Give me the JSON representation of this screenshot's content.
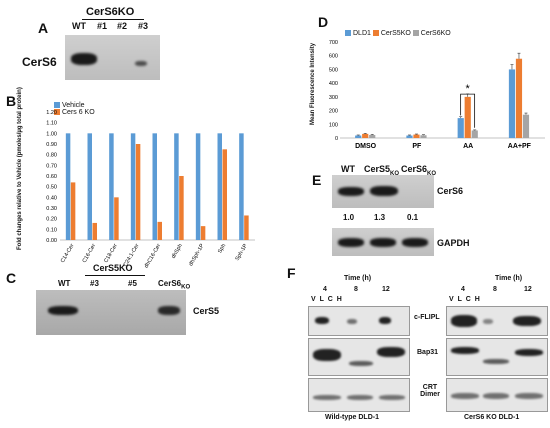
{
  "panelA": {
    "label": "A",
    "header": "CerS6KO",
    "lanes": [
      "WT",
      "#1",
      "#2",
      "#3"
    ],
    "rowLabel": "CerS6"
  },
  "panelB": {
    "label": "B",
    "legend": [
      "Vehicle",
      "Cers 6 KO"
    ],
    "ylabel": "Fold changes relative to Vehicle (pmoles/µg total protein)",
    "yticks": [
      "0.00",
      "0.10",
      "0.20",
      "0.30",
      "0.40",
      "0.50",
      "0.60",
      "0.70",
      "0.80",
      "0.90",
      "1.00",
      "1.10",
      "1.20"
    ]
  },
  "panelC": {
    "label": "C",
    "header": "CerS5KO",
    "lanes": [
      "WT",
      "#3",
      "#5",
      "CerS6"
    ],
    "subscript": "KO",
    "rowLabel": "CerS5"
  },
  "panelD": {
    "label": "D",
    "legend": [
      "DLD1",
      "CerS5KO",
      "CerS6KO"
    ],
    "ylabel": "Mean Fluorescence Intensity",
    "yticks": [
      "0",
      "100",
      "200",
      "300",
      "400",
      "500",
      "600",
      "700"
    ],
    "star": "*"
  },
  "panelE": {
    "label": "E",
    "lanes": [
      "WT",
      "CerS5",
      "CerS6"
    ],
    "subscript": "KO",
    "rows": [
      "CerS6",
      "GAPDH"
    ],
    "values": [
      "1.0",
      "1.3",
      "0.1"
    ]
  },
  "panelF": {
    "label": "F",
    "time": "Time (h)",
    "timepoints": [
      "4",
      "8",
      "12"
    ],
    "lanes": [
      "V",
      "L",
      "C",
      "H"
    ],
    "rows": [
      "c-FLIPL",
      "Bap31",
      "CRT Dimer"
    ],
    "captionLeft": "Wild-type DLD-1",
    "captionRight": "CerS6 KO DLD-1"
  },
  "chart_data": [
    {
      "type": "bar",
      "categories": [
        "C14-Cer",
        "C16-Cer",
        "C18-Cer",
        "C24:1-Cer",
        "dhC16-Cer",
        "dhSph",
        "dhSph-1P",
        "Sph",
        "Sph-1P"
      ],
      "series": [
        {
          "name": "Vehicle",
          "values": [
            1,
            1,
            1,
            1,
            1,
            1,
            1,
            1,
            1
          ]
        },
        {
          "name": "Cers 6 KO",
          "values": [
            0.54,
            0.16,
            0.4,
            0.9,
            0.17,
            0.6,
            0.13,
            0.85,
            0.23
          ]
        }
      ],
      "ylabel": "Fold changes relative to Vehicle (pmoles/µg total protein)",
      "ylim": [
        0,
        1.2
      ],
      "legend": "top-left",
      "colors": [
        "#5b9bd5",
        "#ed7d31"
      ]
    },
    {
      "type": "bar",
      "categories": [
        "DMSO",
        "PF",
        "AA",
        "AA+PF"
      ],
      "series": [
        {
          "name": "DLD1",
          "values": [
            18,
            18,
            145,
            500
          ]
        },
        {
          "name": "CerS5KO",
          "values": [
            30,
            25,
            300,
            578
          ]
        },
        {
          "name": "CerS6KO",
          "values": [
            22,
            20,
            55,
            170
          ]
        }
      ],
      "ylabel": "Mean Fluorescence Intensity",
      "ylim": [
        0,
        700
      ],
      "legend": "top-left",
      "colors": [
        "#5b9bd5",
        "#ed7d31",
        "#a5a5a5"
      ]
    }
  ]
}
